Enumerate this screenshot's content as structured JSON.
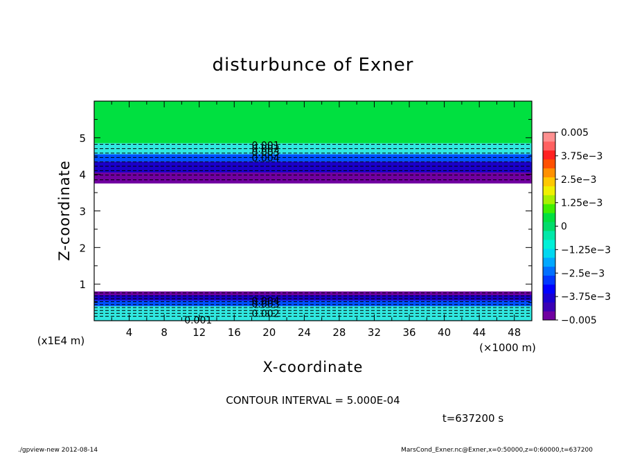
{
  "chart_data": {
    "type": "heatmap",
    "title": "disturbunce of Exner",
    "xlabel": "X-coordinate",
    "ylabel": "Z-coordinate",
    "x_unit": "(×1000 m)",
    "y_unit": "(x1E4 m)",
    "xlim": [
      0,
      50
    ],
    "ylim": [
      0,
      6
    ],
    "x_ticks": [
      4,
      8,
      12,
      16,
      20,
      24,
      28,
      32,
      36,
      40,
      44,
      48
    ],
    "y_ticks": [
      1,
      2,
      3,
      4,
      5
    ],
    "colorbar": {
      "range": [
        -0.005,
        0.005
      ],
      "tick_values": [
        -0.005,
        -0.00375,
        -0.0025,
        -0.00125,
        0,
        0.00125,
        0.0025,
        0.00375,
        0.005
      ],
      "tick_labels": [
        "−0.005",
        "−3.75e−3",
        "−2.5e−3",
        "−1.25e−3",
        "0",
        "1.25e−3",
        "2.5e−3",
        "3.75e−3",
        "0.005"
      ],
      "colors": [
        "#7000a0",
        "#3a00b4",
        "#1a00d0",
        "#0000ff",
        "#0038ff",
        "#0070ff",
        "#00a8ff",
        "#00d8f0",
        "#00f0d8",
        "#00e8a8",
        "#00dc6a",
        "#00e040",
        "#40ee00",
        "#a8f000",
        "#f0f000",
        "#ffc800",
        "#ff9000",
        "#ff5000",
        "#ff2020",
        "#ff6060",
        "#ff9090"
      ]
    },
    "bands": [
      {
        "z0": 0.0,
        "z1": 0.4,
        "value": -0.002,
        "color": "#30e8e0"
      },
      {
        "z0": 0.4,
        "z1": 0.55,
        "value": -0.0035,
        "color": "#0050ff"
      },
      {
        "z0": 0.55,
        "z1": 0.7,
        "value": -0.0045,
        "color": "#1a00c8"
      },
      {
        "z0": 0.7,
        "z1": 0.8,
        "value": -0.005,
        "color": "#7000a0"
      },
      {
        "z0": 3.75,
        "z1": 4.05,
        "value": -0.005,
        "color": "#7000a0"
      },
      {
        "z0": 4.05,
        "z1": 4.35,
        "value": -0.0045,
        "color": "#1a00c8"
      },
      {
        "z0": 4.35,
        "z1": 4.55,
        "value": -0.0035,
        "color": "#0050ff"
      },
      {
        "z0": 4.55,
        "z1": 4.85,
        "value": -0.002,
        "color": "#30e8e0"
      },
      {
        "z0": 4.85,
        "z1": 6.0,
        "value": 0.0,
        "color": "#00e040"
      }
    ],
    "lower_contour_levels": [
      0.12,
      0.2,
      0.28,
      0.36,
      0.44,
      0.52,
      0.6,
      0.68,
      0.76
    ],
    "upper_contour_levels": [
      3.85,
      3.98,
      4.1,
      4.22,
      4.34,
      4.46,
      4.58,
      4.7,
      4.82
    ],
    "contour_labels": [
      {
        "text": "0.001",
        "x": 18.0,
        "z": 4.8
      },
      {
        "text": "0.002",
        "x": 18.0,
        "z": 4.7
      },
      {
        "text": "0.003",
        "x": 18.0,
        "z": 4.6
      },
      {
        "text": "0.004",
        "x": 18.0,
        "z": 4.45
      },
      {
        "text": "0.004",
        "x": 18.0,
        "z": 0.55
      },
      {
        "text": "0.003",
        "x": 18.0,
        "z": 0.45
      },
      {
        "text": "0.002",
        "x": 18.0,
        "z": 0.2
      },
      {
        "text": "0.001",
        "x": 10.3,
        "z": 0.02
      }
    ],
    "grid": false
  },
  "annotations": {
    "contour_interval": "CONTOUR INTERVAL = 5.000E-04",
    "time": "t=637200 s",
    "footer_left": "./gpview-new   2012-08-14",
    "footer_right": "MarsCond_Exner.nc@Exner,x=0:50000,z=0:60000,t=637200"
  }
}
